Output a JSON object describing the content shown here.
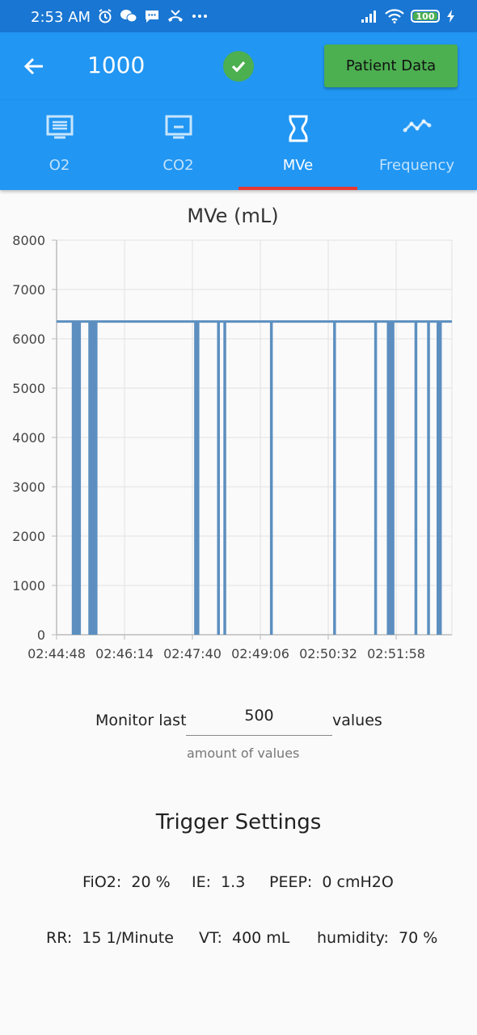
{
  "status_bar": {
    "time": "2:53 AM",
    "battery": "100"
  },
  "app_bar": {
    "title": "1000",
    "patient_button": "Patient Data"
  },
  "tabs": [
    {
      "label": "O2",
      "icon": "list-card-icon",
      "active": false
    },
    {
      "label": "CO2",
      "icon": "monitor-icon",
      "active": false
    },
    {
      "label": "MVe",
      "icon": "hourglass-icon",
      "active": true
    },
    {
      "label": "Frequency",
      "icon": "trend-line-icon",
      "active": false
    }
  ],
  "chart_data": {
    "type": "line",
    "title": "MVe (mL)",
    "ylim": [
      0,
      8000
    ],
    "y_ticks": [
      "0",
      "1000",
      "2000",
      "3000",
      "4000",
      "5000",
      "6000",
      "7000",
      "8000"
    ],
    "x_ticks": [
      "02:44:48",
      "02:46:14",
      "02:47:40",
      "02:49:06",
      "02:50:32",
      "02:51:58"
    ],
    "baseline_value": 6350,
    "drop_to_zero_at": [
      "02:45:09",
      "02:45:12",
      "02:45:15",
      "02:45:17",
      "02:45:30",
      "02:45:33",
      "02:45:36",
      "02:45:38",
      "02:47:44",
      "02:47:47",
      "02:48:13",
      "02:48:21",
      "02:49:20",
      "02:50:40",
      "02:51:32",
      "02:51:48",
      "02:51:51",
      "02:51:54",
      "02:52:23",
      "02:52:39",
      "02:52:51",
      "02:52:54"
    ],
    "grid": true,
    "series_color": "#5c8fbf"
  },
  "monitor": {
    "prefix": "Monitor last",
    "value": "500",
    "suffix": "values",
    "helper": "amount of values"
  },
  "trigger": {
    "title": "Trigger Settings",
    "fio2": "FiO2:  20 %",
    "ie": "IE:  1.3",
    "peep": "PEEP:  0 cmH2O",
    "rr": "RR:  15 1/Minute",
    "vt": "VT:  400 mL",
    "humidity": "humidity:  70 %"
  }
}
